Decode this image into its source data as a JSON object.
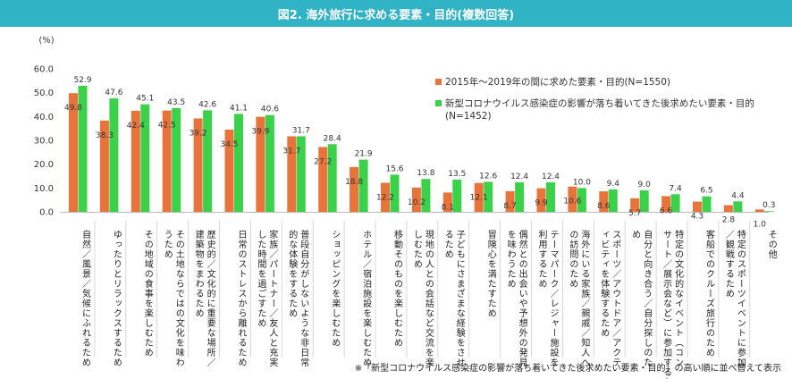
{
  "title": "図2. 海外旅行に求める要素・目的(複数回答)",
  "note": "※「新型コロナウイルス感染症の影響が落ち着いてきた後求めたい要素・目的」の高い順に並べ替えて表示",
  "colors": {
    "title_bg": "#31b3c6",
    "series1": "#e8743c",
    "series2": "#3cd14a"
  },
  "chart_data": {
    "type": "bar",
    "ylabel": "(%)",
    "ylim": [
      0,
      60
    ],
    "yticks": [
      "0.0",
      "10.0",
      "20.0",
      "30.0",
      "40.0",
      "50.0",
      "60.0"
    ],
    "categories": [
      "自然／風景／気候にふれるため",
      "ゆったりとリラックスするため",
      "その地域の食事を楽しむため",
      "その土地ならではの文化を味わうため",
      "歴史的／文化的に重要な場所／建築物をまわるため",
      "日常のストレスから離れるため",
      "家族／パートナー／友人と充実した時間を過ごすため",
      "普段自分がしないような非日常的な体験をするため",
      "ショッピングを楽しむため",
      "ホテル／宿泊施設を楽しむため",
      "移動そのものを楽しむため",
      "現地の人との会話など交流を楽しむため",
      "子どもにさまざまな経験をさせるため",
      "冒険心を満たすため",
      "偶然との出会いや予想外の発見を味わうため",
      "テーマパーク／レジャー施設を利用するため",
      "海外にいる家族／親戚／知人への訪問のため",
      "スポーツ／アウトドア／アクティビティを体験するため",
      "自分と向き合う／自分探しのため",
      "特定の文化的なイベント（コンサート／展示会など）に参加するため",
      "客船でのクルーズ旅行のため",
      "特定のスポーツイベントに参加／観戦するため",
      "その他"
    ],
    "series": [
      {
        "name": "2015年～2019年の間に求めた要素・目的(N=1550)",
        "values": [
          49.8,
          38.3,
          42.4,
          42.5,
          39.2,
          34.5,
          39.9,
          31.7,
          27.2,
          18.8,
          12.2,
          10.2,
          8.1,
          12.1,
          8.7,
          9.9,
          10.6,
          8.6,
          5.7,
          6.6,
          4.3,
          2.8,
          1.0
        ]
      },
      {
        "name": "新型コロナウイルス感染症の影響が落ち着いてきた後求めたい要素・目的(N=1452)",
        "values": [
          52.9,
          47.6,
          45.1,
          43.5,
          42.6,
          41.1,
          40.6,
          31.7,
          28.4,
          21.9,
          15.6,
          13.8,
          13.5,
          12.6,
          12.4,
          12.4,
          10.0,
          9.4,
          9.0,
          7.4,
          6.5,
          4.4,
          0.3
        ]
      }
    ]
  }
}
